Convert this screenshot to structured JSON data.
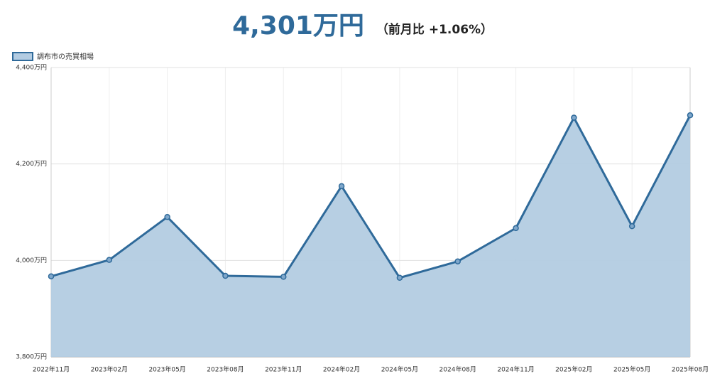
{
  "chart_data": {
    "type": "line",
    "title": "4,301万円",
    "subtitle": "（前月比 +1.06%）",
    "categories": [
      "2022年11月",
      "2023年02月",
      "2023年05月",
      "2023年08月",
      "2023年11月",
      "2024年02月",
      "2024年05月",
      "2024年08月",
      "2024年11月",
      "2025年02月",
      "2025年05月",
      "2025年08月"
    ],
    "series": [
      {
        "name": "調布市の売買相場",
        "color": "#2f6a9a",
        "fill": "#b3cce2",
        "values": [
          3967,
          4001,
          4090,
          3968,
          3966,
          4154,
          3964,
          3998,
          4067,
          4296,
          4071,
          4301
        ]
      }
    ],
    "ylim": [
      3800,
      4400
    ],
    "yticks": [
      {
        "value": 3800,
        "label": "3,800万円"
      },
      {
        "value": 4000,
        "label": "4,000万円"
      },
      {
        "value": 4200,
        "label": "4,200万円"
      },
      {
        "value": 4400,
        "label": "4,400万円"
      }
    ],
    "grid": true,
    "legend": "top-left"
  }
}
